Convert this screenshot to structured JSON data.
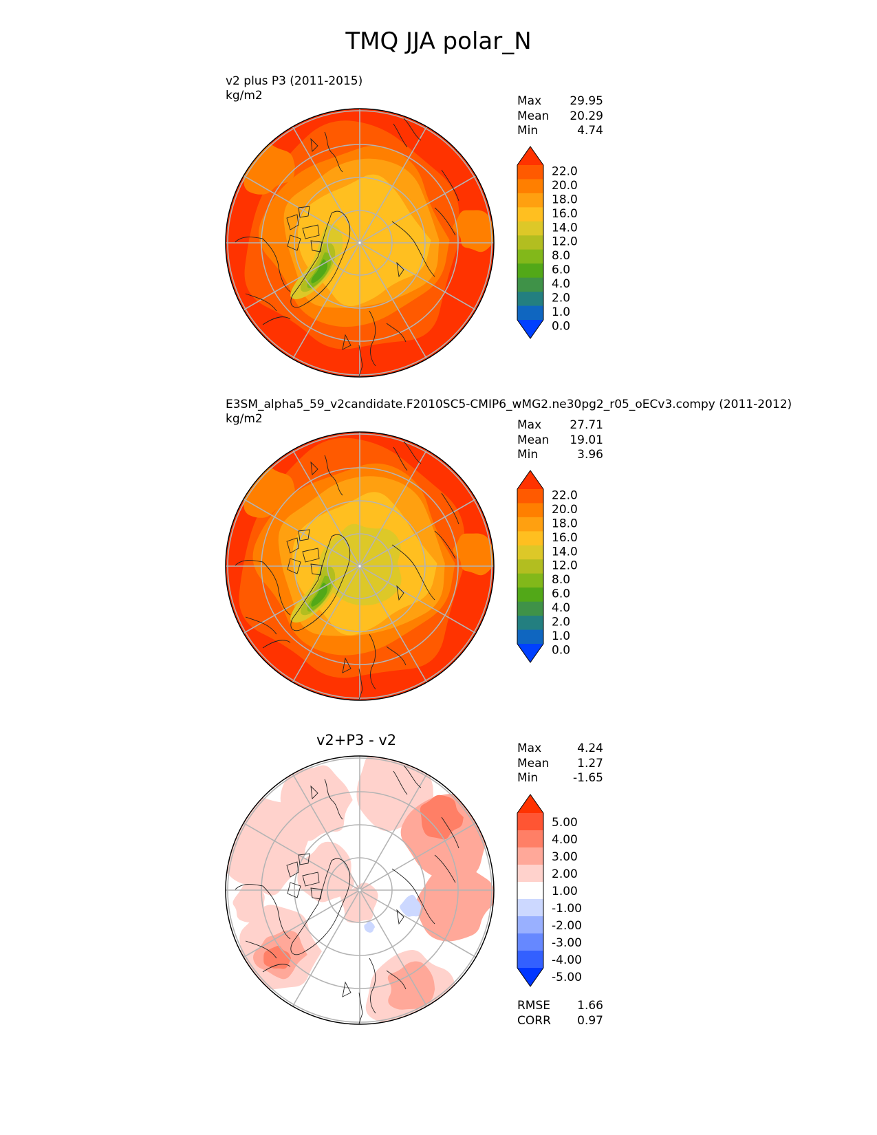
{
  "figure_title": "TMQ JJA polar_N",
  "chart_data": [
    {
      "type": "heatmap",
      "projection": "north polar stereographic",
      "title": "v2 plus P3 (2011-2015)",
      "units": "kg/m2",
      "stats": {
        "max": "29.95",
        "mean": "20.29",
        "min": "4.74"
      },
      "stat_labels": {
        "max": "Max",
        "mean": "Mean",
        "min": "Min"
      },
      "colorbar": {
        "ticks": [
          "22.0",
          "20.0",
          "18.0",
          "16.0",
          "14.0",
          "12.0",
          "8.0",
          "6.0",
          "4.0",
          "2.0",
          "1.0",
          "0.0"
        ],
        "colors": [
          "#ff3300",
          "#ff5a00",
          "#ff7f00",
          "#ffa010",
          "#ffbf20",
          "#ddc828",
          "#b2be20",
          "#82b81a",
          "#52a818",
          "#3f9248",
          "#237f80",
          "#0f66c0",
          "#0040ff"
        ]
      }
    },
    {
      "type": "heatmap",
      "projection": "north polar stereographic",
      "title": "E3SM_alpha5_59_v2candidate.F2010SC5-CMIP6_wMG2.ne30pg2_r05_oECv3.compy (2011-2012)",
      "units": "kg/m2",
      "stats": {
        "max": "27.71",
        "mean": "19.01",
        "min": "3.96"
      },
      "stat_labels": {
        "max": "Max",
        "mean": "Mean",
        "min": "Min"
      },
      "colorbar": {
        "ticks": [
          "22.0",
          "20.0",
          "18.0",
          "16.0",
          "14.0",
          "12.0",
          "8.0",
          "6.0",
          "4.0",
          "2.0",
          "1.0",
          "0.0"
        ],
        "colors": [
          "#ff3300",
          "#ff5a00",
          "#ff7f00",
          "#ffa010",
          "#ffbf20",
          "#ddc828",
          "#b2be20",
          "#82b81a",
          "#52a818",
          "#3f9248",
          "#237f80",
          "#0f66c0",
          "#0040ff"
        ]
      }
    },
    {
      "type": "heatmap",
      "projection": "north polar stereographic",
      "title": "v2+P3 - v2",
      "stats": {
        "max": "4.24",
        "mean": "1.27",
        "min": "-1.65",
        "rmse": "1.66",
        "corr": "0.97"
      },
      "stat_labels": {
        "max": "Max",
        "mean": "Mean",
        "min": "Min",
        "rmse": "RMSE",
        "corr": "CORR"
      },
      "colorbar": {
        "ticks": [
          "5.00",
          "4.00",
          "3.00",
          "2.00",
          "1.00",
          "-1.00",
          "-2.00",
          "-3.00",
          "-4.00",
          "-5.00"
        ],
        "colors": [
          "#ff3300",
          "#ff5533",
          "#ff7f66",
          "#ffa899",
          "#ffd2cc",
          "#ffffff",
          "#ccd8ff",
          "#99b0ff",
          "#6688ff",
          "#3360ff",
          "#0036ff"
        ]
      }
    }
  ]
}
